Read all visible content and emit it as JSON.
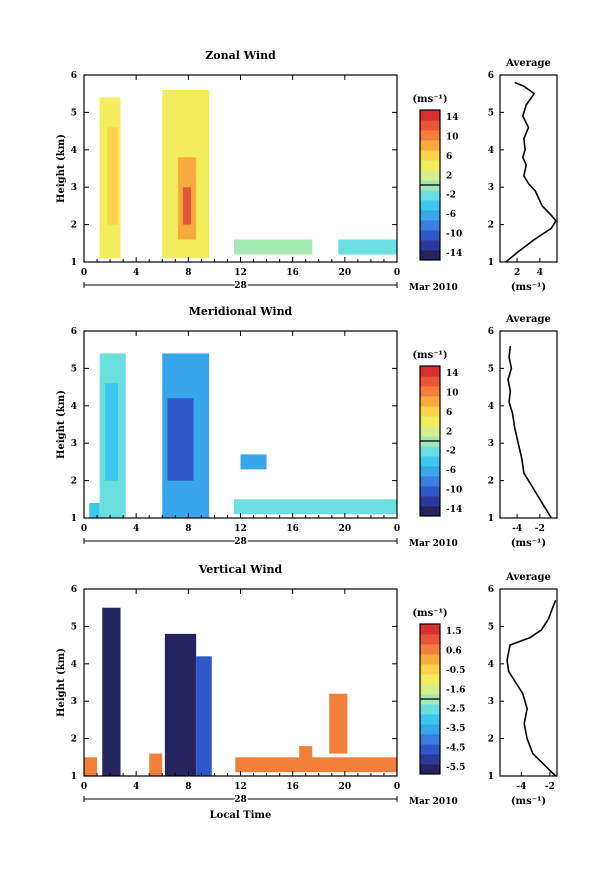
{
  "colors": {
    "wind_scale": [
      "#25245f",
      "#2b3a9a",
      "#2e57c8",
      "#3a7fe0",
      "#38a6ea",
      "#3cc7ee",
      "#6bdfe0",
      "#a6e9b5",
      "#d7ef8a",
      "#f3ec5c",
      "#f9d44a",
      "#f7ab3c",
      "#f2803a",
      "#ea543a",
      "#d9302f"
    ]
  },
  "common": {
    "cb_unit": "(ms⁻¹)",
    "avg_title": "Average",
    "avg_unit": "(ms⁻¹)",
    "ylabel": "Height (km)",
    "date_day": "28",
    "date_month": "Mar 2010",
    "xticks": [
      "0",
      "4",
      "8",
      "12",
      "16",
      "20",
      "0"
    ],
    "yticks": [
      "1",
      "2",
      "3",
      "4",
      "5",
      "6"
    ],
    "xlabel_bottom": "Local Time"
  },
  "chart_data": [
    {
      "type": "heatmap",
      "title": "Zonal Wind",
      "xlim": [
        0,
        24
      ],
      "ylim": [
        1,
        6
      ],
      "colorbar_ticks": [
        "14",
        "10",
        "6",
        "2",
        "-2",
        "-6",
        "-10",
        "-14"
      ],
      "colorbar_range": [
        -16,
        16
      ],
      "blocks": [
        {
          "x": [
            1.2,
            2.8
          ],
          "y": [
            1.1,
            5.4
          ],
          "v": 4
        },
        {
          "x": [
            1.8,
            2.6
          ],
          "y": [
            2.0,
            4.6
          ],
          "v": 7
        },
        {
          "x": [
            6.0,
            9.6
          ],
          "y": [
            1.1,
            5.6
          ],
          "v": 4
        },
        {
          "x": [
            7.2,
            8.6
          ],
          "y": [
            1.6,
            3.8
          ],
          "v": 9
        },
        {
          "x": [
            7.6,
            8.2
          ],
          "y": [
            2.0,
            3.0
          ],
          "v": 12
        },
        {
          "x": [
            11.5,
            17.5
          ],
          "y": [
            1.2,
            1.6
          ],
          "v": 1
        },
        {
          "x": [
            19.5,
            24.0
          ],
          "y": [
            1.2,
            1.6
          ],
          "v": -3
        }
      ],
      "avg": {
        "xticks": [
          "2",
          "4"
        ],
        "xlim": [
          0.5,
          5.5
        ],
        "points": [
          [
            1.0,
            1.0
          ],
          [
            2.2,
            1.3
          ],
          [
            3.5,
            1.6
          ],
          [
            5.0,
            1.9
          ],
          [
            5.4,
            2.1
          ],
          [
            5.0,
            2.25
          ],
          [
            4.2,
            2.5
          ],
          [
            3.6,
            2.9
          ],
          [
            3.0,
            3.1
          ],
          [
            2.6,
            3.3
          ],
          [
            2.8,
            3.6
          ],
          [
            2.5,
            3.8
          ],
          [
            2.7,
            4.0
          ],
          [
            2.6,
            4.3
          ],
          [
            3.0,
            4.6
          ],
          [
            2.5,
            4.9
          ],
          [
            2.8,
            5.2
          ],
          [
            3.5,
            5.5
          ],
          [
            2.6,
            5.7
          ],
          [
            1.8,
            5.8
          ]
        ]
      }
    },
    {
      "type": "heatmap",
      "title": "Meridional Wind",
      "xlim": [
        0,
        24
      ],
      "ylim": [
        1,
        6
      ],
      "colorbar_ticks": [
        "14",
        "10",
        "6",
        "2",
        "-2",
        "-6",
        "-10",
        "-14"
      ],
      "colorbar_range": [
        -16,
        16
      ],
      "blocks": [
        {
          "x": [
            0.4,
            1.2
          ],
          "y": [
            1.0,
            1.4
          ],
          "v": -4
        },
        {
          "x": [
            1.2,
            3.2
          ],
          "y": [
            1.0,
            5.4
          ],
          "v": -3
        },
        {
          "x": [
            1.6,
            2.6
          ],
          "y": [
            2.0,
            4.6
          ],
          "v": -5
        },
        {
          "x": [
            6.0,
            9.6
          ],
          "y": [
            1.0,
            5.4
          ],
          "v": -7
        },
        {
          "x": [
            6.4,
            8.4
          ],
          "y": [
            2.0,
            4.2
          ],
          "v": -10
        },
        {
          "x": [
            11.5,
            24.0
          ],
          "y": [
            1.1,
            1.5
          ],
          "v": -3
        },
        {
          "x": [
            12.0,
            14.0
          ],
          "y": [
            2.3,
            2.7
          ],
          "v": -7
        }
      ],
      "avg": {
        "xticks": [
          "-4",
          "-2"
        ],
        "xlim": [
          -5.5,
          -0.5
        ],
        "points": [
          [
            -1.0,
            1.0
          ],
          [
            -1.6,
            1.3
          ],
          [
            -2.2,
            1.6
          ],
          [
            -2.8,
            1.9
          ],
          [
            -3.4,
            2.2
          ],
          [
            -3.6,
            2.6
          ],
          [
            -3.9,
            3.0
          ],
          [
            -4.2,
            3.4
          ],
          [
            -4.4,
            3.8
          ],
          [
            -4.7,
            4.1
          ],
          [
            -4.6,
            4.4
          ],
          [
            -4.8,
            4.7
          ],
          [
            -4.5,
            5.0
          ],
          [
            -4.7,
            5.3
          ],
          [
            -4.6,
            5.6
          ]
        ]
      }
    },
    {
      "type": "heatmap",
      "title": "Vertical Wind",
      "xlabel": "Local Time",
      "xlim": [
        0,
        24
      ],
      "ylim": [
        1,
        6
      ],
      "colorbar_ticks": [
        "1.5",
        "0.6",
        "-0.5",
        "-1.6",
        "-2.5",
        "-3.5",
        "-4.5",
        "-5.5"
      ],
      "colorbar_range": [
        -6,
        2
      ],
      "blocks": [
        {
          "x": [
            1.4,
            2.8
          ],
          "y": [
            1.0,
            5.5
          ],
          "v": -5.9
        },
        {
          "x": [
            0.0,
            1.0
          ],
          "y": [
            1.0,
            1.5
          ],
          "v": 0.8
        },
        {
          "x": [
            5.0,
            6.0
          ],
          "y": [
            1.0,
            1.6
          ],
          "v": 0.9
        },
        {
          "x": [
            6.2,
            8.6
          ],
          "y": [
            1.0,
            4.8
          ],
          "v": -5.9
        },
        {
          "x": [
            8.6,
            9.8
          ],
          "y": [
            1.0,
            4.2
          ],
          "v": -4.6
        },
        {
          "x": [
            11.6,
            24.0
          ],
          "y": [
            1.1,
            1.5
          ],
          "v": 0.6
        },
        {
          "x": [
            16.5,
            17.5
          ],
          "y": [
            1.4,
            1.8
          ],
          "v": 0.9
        },
        {
          "x": [
            18.8,
            20.2
          ],
          "y": [
            1.6,
            3.2
          ],
          "v": 0.7
        }
      ],
      "avg": {
        "xticks": [
          "-4",
          "-2"
        ],
        "xlim": [
          -5.5,
          -1.5
        ],
        "points": [
          [
            -1.6,
            1.0
          ],
          [
            -2.4,
            1.3
          ],
          [
            -3.2,
            1.6
          ],
          [
            -3.6,
            2.0
          ],
          [
            -3.8,
            2.4
          ],
          [
            -3.6,
            2.8
          ],
          [
            -3.9,
            3.2
          ],
          [
            -4.4,
            3.5
          ],
          [
            -4.9,
            3.8
          ],
          [
            -5.0,
            4.1
          ],
          [
            -4.8,
            4.5
          ],
          [
            -3.4,
            4.7
          ],
          [
            -2.6,
            4.9
          ],
          [
            -2.1,
            5.2
          ],
          [
            -1.8,
            5.5
          ],
          [
            -1.6,
            5.7
          ]
        ]
      }
    }
  ]
}
